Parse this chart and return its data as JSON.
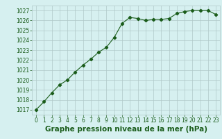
{
  "x": [
    0,
    1,
    2,
    3,
    4,
    5,
    6,
    7,
    8,
    9,
    10,
    11,
    12,
    13,
    14,
    15,
    16,
    17,
    18,
    19,
    20,
    21,
    22,
    23
  ],
  "y": [
    1017.0,
    1017.8,
    1018.7,
    1019.5,
    1020.0,
    1020.8,
    1021.5,
    1022.1,
    1022.8,
    1023.3,
    1024.3,
    1025.7,
    1026.3,
    1026.2,
    1026.0,
    1026.1,
    1026.1,
    1026.2,
    1026.7,
    1026.9,
    1027.0,
    1027.0,
    1027.0,
    1026.6
  ],
  "line_color": "#1a5c1a",
  "marker": "D",
  "marker_size": 2.2,
  "bg_color": "#d6f0f0",
  "grid_color": "#b0c8c8",
  "xlabel": "Graphe pression niveau de la mer (hPa)",
  "xlabel_fontsize": 7.5,
  "xlabel_color": "#1a5c1a",
  "ylim": [
    1016.5,
    1027.5
  ],
  "yticks": [
    1017,
    1018,
    1019,
    1020,
    1021,
    1022,
    1023,
    1024,
    1025,
    1026,
    1027
  ],
  "xticks": [
    0,
    1,
    2,
    3,
    4,
    5,
    6,
    7,
    8,
    9,
    10,
    11,
    12,
    13,
    14,
    15,
    16,
    17,
    18,
    19,
    20,
    21,
    22,
    23
  ],
  "tick_fontsize": 5.5,
  "tick_color": "#1a5c1a",
  "linewidth": 0.8
}
